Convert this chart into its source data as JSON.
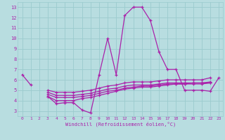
{
  "xlabel": "Windchill (Refroidissement éolien,°C)",
  "bg_color": "#b8dde0",
  "grid_color": "#9bcbce",
  "line_color": "#aa22aa",
  "xlim": [
    -0.5,
    23.5
  ],
  "ylim": [
    2.5,
    13.5
  ],
  "xticks": [
    0,
    1,
    2,
    3,
    4,
    5,
    6,
    7,
    8,
    9,
    10,
    11,
    12,
    13,
    14,
    15,
    16,
    17,
    18,
    19,
    20,
    21,
    22,
    23
  ],
  "yticks": [
    3,
    4,
    5,
    6,
    7,
    8,
    9,
    10,
    11,
    12,
    13
  ],
  "series": [
    [
      6.5,
      5.5,
      null,
      4.4,
      3.7,
      3.8,
      3.8,
      3.1,
      2.8,
      6.5,
      10.0,
      6.5,
      12.2,
      13.0,
      13.0,
      11.7,
      8.7,
      7.0,
      7.0,
      5.0,
      5.0,
      5.0,
      4.9,
      6.2
    ],
    [
      null,
      null,
      null,
      4.4,
      4.0,
      4.0,
      4.0,
      4.2,
      4.3,
      4.5,
      4.7,
      4.9,
      5.1,
      5.2,
      5.3,
      5.3,
      5.4,
      5.5,
      5.6,
      5.6,
      5.6,
      5.6,
      5.7,
      null
    ],
    [
      null,
      null,
      null,
      4.6,
      4.3,
      4.3,
      4.3,
      4.4,
      4.5,
      4.7,
      4.9,
      5.0,
      5.2,
      5.3,
      5.4,
      5.4,
      5.5,
      5.6,
      5.6,
      5.6,
      5.7,
      5.7,
      5.7,
      null
    ],
    [
      null,
      null,
      null,
      4.8,
      4.5,
      4.5,
      4.5,
      4.6,
      4.7,
      4.9,
      5.1,
      5.2,
      5.4,
      5.5,
      5.5,
      5.5,
      5.6,
      5.7,
      5.7,
      5.7,
      5.7,
      5.7,
      5.8,
      null
    ],
    [
      null,
      null,
      null,
      5.0,
      4.8,
      4.8,
      4.8,
      4.9,
      5.0,
      5.2,
      5.4,
      5.5,
      5.7,
      5.8,
      5.8,
      5.8,
      5.9,
      6.0,
      6.0,
      6.0,
      6.0,
      6.0,
      6.2,
      null
    ]
  ]
}
